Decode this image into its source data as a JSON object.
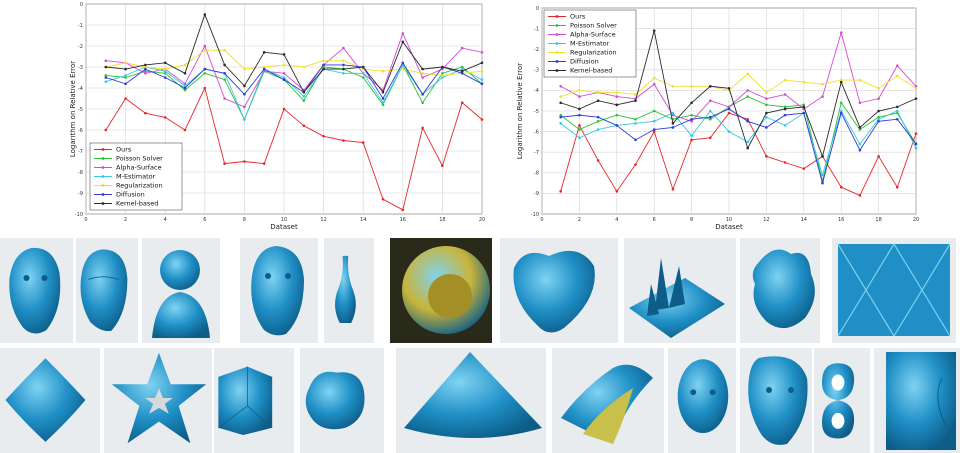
{
  "chart_data": [
    {
      "type": "line",
      "xlabel": "Dataset",
      "ylabel": "Logarithm on Relative Error",
      "xlim": [
        0,
        20
      ],
      "ylim": [
        -10,
        0
      ],
      "x_ticks": [
        "0",
        "2",
        "4",
        "6",
        "8",
        "10",
        "12",
        "14",
        "16",
        "18",
        "20"
      ],
      "y_ticks": [
        "0",
        "-1",
        "-2",
        "-3",
        "-4",
        "-5",
        "-6",
        "-7",
        "-8",
        "-9",
        "-10"
      ],
      "grid": true,
      "legend_position": "bottom-left",
      "series": [
        {
          "name": "Ours",
          "color": "#e8262a",
          "marker": "circle",
          "values": [
            -6.0,
            -4.5,
            -5.2,
            -5.4,
            -6.0,
            -4.0,
            -7.6,
            -7.5,
            -7.6,
            -5.0,
            -5.8,
            -6.3,
            -6.5,
            -6.6,
            -9.3,
            -9.8,
            -5.9,
            -7.7,
            -4.7,
            -5.5
          ]
        },
        {
          "name": "Poisson Solver",
          "color": "#2ec23a",
          "marker": "circle",
          "values": [
            -3.4,
            -3.5,
            -3.2,
            -3.3,
            -4.1,
            -3.3,
            -3.6,
            -5.5,
            -3.2,
            -3.6,
            -4.6,
            -3.0,
            -3.1,
            -3.5,
            -4.8,
            -2.9,
            -4.7,
            -3.3,
            -3.0,
            -3.8
          ]
        },
        {
          "name": "Alpha-Surface",
          "color": "#d64ad6",
          "marker": "circle",
          "values": [
            -2.7,
            -2.8,
            -3.3,
            -3.1,
            -3.8,
            -2.0,
            -4.5,
            -4.9,
            -3.2,
            -3.3,
            -4.1,
            -2.9,
            -2.1,
            -3.3,
            -4.1,
            -1.4,
            -3.5,
            -3.1,
            -2.1,
            -2.3
          ]
        },
        {
          "name": "M-Estimator",
          "color": "#36c9e0",
          "marker": "circle",
          "values": [
            -3.7,
            -3.4,
            -3.0,
            -3.2,
            -3.9,
            -3.1,
            -3.3,
            -5.5,
            -3.1,
            -3.5,
            -4.4,
            -3.1,
            -3.3,
            -3.3,
            -4.7,
            -2.9,
            -4.3,
            -3.5,
            -3.1,
            -3.6
          ]
        },
        {
          "name": "Regularization",
          "color": "#f2df2a",
          "marker": "circle",
          "values": [
            -3.0,
            -2.8,
            -3.0,
            -3.1,
            -2.9,
            -2.2,
            -2.2,
            -3.1,
            -3.0,
            -2.9,
            -3.0,
            -2.7,
            -2.7,
            -3.1,
            -3.2,
            -3.1,
            -3.3,
            -3.4,
            -3.3,
            -3.2
          ]
        },
        {
          "name": "Diffusion",
          "color": "#2f3ad8",
          "marker": "circle",
          "values": [
            -3.5,
            -3.8,
            -3.1,
            -3.5,
            -4.0,
            -3.1,
            -3.3,
            -4.3,
            -3.1,
            -3.6,
            -4.2,
            -2.9,
            -2.9,
            -3.0,
            -4.5,
            -2.8,
            -4.3,
            -3.0,
            -3.3,
            -3.8
          ]
        },
        {
          "name": "Kernel-based",
          "color": "#2b2b2b",
          "marker": "circle",
          "values": [
            -3.0,
            -3.1,
            -2.9,
            -2.8,
            -3.3,
            -0.5,
            -2.9,
            -3.9,
            -2.3,
            -2.4,
            -4.2,
            -3.1,
            -3.1,
            -3.0,
            -4.2,
            -1.8,
            -3.1,
            -3.0,
            -3.2,
            -2.8
          ]
        }
      ]
    },
    {
      "type": "line",
      "xlabel": "Dataset",
      "ylabel": "Logarithm on Relative Error",
      "xlim": [
        0,
        20
      ],
      "ylim": [
        -10,
        0
      ],
      "x_ticks": [
        "0",
        "2",
        "4",
        "6",
        "8",
        "10",
        "12",
        "14",
        "16",
        "18",
        "20"
      ],
      "y_ticks": [
        "0",
        "-1",
        "-2",
        "-3",
        "-4",
        "-5",
        "-6",
        "-7",
        "-8",
        "-9",
        "-10"
      ],
      "grid": true,
      "legend_position": "top-left",
      "series": [
        {
          "name": "Ours",
          "color": "#e8262a",
          "marker": "circle",
          "values": [
            -8.9,
            -5.7,
            -7.4,
            -8.9,
            -7.6,
            -6.0,
            -8.8,
            -6.4,
            -6.3,
            -5.1,
            -5.4,
            -7.2,
            -7.5,
            -7.8,
            -7.2,
            -8.7,
            -9.1,
            -7.2,
            -8.7,
            -6.1
          ]
        },
        {
          "name": "Poisson Solver",
          "color": "#2ec23a",
          "marker": "circle",
          "values": [
            -5.2,
            -5.9,
            -5.5,
            -5.2,
            -5.4,
            -5.0,
            -5.4,
            -5.2,
            -5.4,
            -4.8,
            -4.3,
            -4.7,
            -4.8,
            -4.7,
            -8.4,
            -4.6,
            -5.9,
            -5.3,
            -5.1,
            -6.6
          ]
        },
        {
          "name": "Alpha-Surface",
          "color": "#d64ad6",
          "marker": "circle",
          "values": [
            -3.8,
            -4.3,
            -4.1,
            -4.3,
            -4.4,
            -3.7,
            -5.2,
            -5.5,
            -4.5,
            -4.8,
            -4.0,
            -4.4,
            -4.2,
            -4.9,
            -4.3,
            -1.2,
            -4.6,
            -4.4,
            -2.8,
            -3.8
          ]
        },
        {
          "name": "M-Estimator",
          "color": "#36c9e0",
          "marker": "circle",
          "values": [
            -5.6,
            -6.3,
            -5.9,
            -5.7,
            -5.6,
            -5.5,
            -5.1,
            -6.2,
            -5.0,
            -6.0,
            -6.5,
            -5.3,
            -5.7,
            -5.1,
            -8.1,
            -5.0,
            -6.6,
            -5.4,
            -5.0,
            -6.8
          ]
        },
        {
          "name": "Regularization",
          "color": "#f2df2a",
          "marker": "circle",
          "values": [
            -4.3,
            -4.0,
            -4.1,
            -4.1,
            -4.2,
            -3.4,
            -3.8,
            -3.8,
            -3.8,
            -4.0,
            -3.2,
            -4.1,
            -3.5,
            -3.6,
            -3.7,
            -3.5,
            -3.5,
            -3.9,
            -3.3,
            -3.9
          ]
        },
        {
          "name": "Diffusion",
          "color": "#2f3ad8",
          "marker": "circle",
          "values": [
            -5.3,
            -5.2,
            -5.3,
            -5.7,
            -6.4,
            -5.9,
            -5.8,
            -5.4,
            -5.3,
            -4.9,
            -5.5,
            -5.8,
            -5.2,
            -5.1,
            -8.5,
            -5.1,
            -6.9,
            -5.5,
            -5.4,
            -6.6
          ]
        },
        {
          "name": "Kernel-based",
          "color": "#2b2b2b",
          "marker": "circle",
          "values": [
            -4.6,
            -4.9,
            -4.5,
            -4.7,
            -4.5,
            -1.1,
            -5.6,
            -4.6,
            -3.8,
            -3.9,
            -6.8,
            -5.1,
            -4.9,
            -4.8,
            -7.2,
            -3.6,
            -5.8,
            -5.0,
            -4.8,
            -4.4
          ]
        }
      ]
    }
  ],
  "thumbnails": {
    "row1": [
      {
        "label": "face-scan-1",
        "color": "#1f8fc6"
      },
      {
        "label": "face-scan-2",
        "color": "#1f8fc6"
      },
      {
        "label": "bust",
        "color": "#1f8fc6"
      },
      {
        "label": "face-scan-3",
        "color": "#1f8fc6"
      },
      {
        "label": "vase",
        "color": "#1f8fc6"
      },
      {
        "label": "coin",
        "color": "#c8b43a"
      },
      {
        "label": "blob-heart",
        "color": "#1f8fc6"
      },
      {
        "label": "spiky-terrain",
        "color": "#1f8fc6"
      },
      {
        "label": "bumpy-blob",
        "color": "#1f8fc6"
      },
      {
        "label": "diamond-pattern",
        "color": "#1f8fc6"
      }
    ],
    "row2": [
      {
        "label": "rounded-square",
        "color": "#1f8fc6"
      },
      {
        "label": "star",
        "color": "#1f8fc6"
      },
      {
        "label": "corner-box",
        "color": "#1f8fc6"
      },
      {
        "label": "lumpy-blob",
        "color": "#1f8fc6"
      },
      {
        "label": "cone",
        "color": "#1f8fc6"
      },
      {
        "label": "saddle",
        "color": "#1f8fc6"
      },
      {
        "label": "head",
        "color": "#1f8fc6"
      },
      {
        "label": "mask",
        "color": "#1f8fc6"
      },
      {
        "label": "double-torus",
        "color": "#1f8fc6"
      },
      {
        "label": "rough-surface",
        "color": "#1f8fc6"
      }
    ]
  }
}
